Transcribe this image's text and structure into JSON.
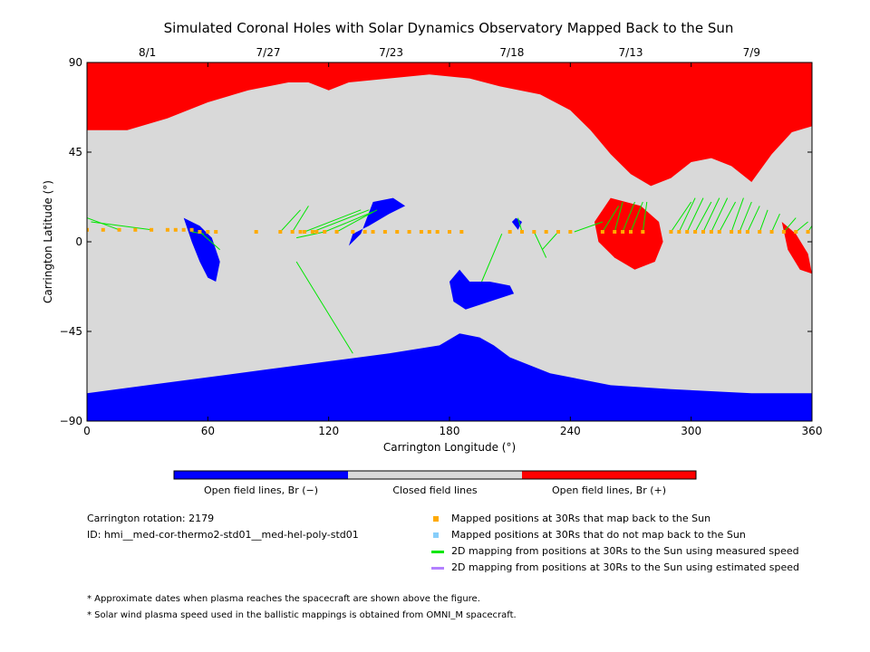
{
  "chart_data": {
    "type": "map",
    "title": "Simulated Coronal Holes with Solar Dynamics Observatory Mapped Back to the Sun",
    "xlabel": "Carrington Longitude (°)",
    "ylabel": "Carrington Latitude (°)",
    "xlim": [
      0,
      360
    ],
    "ylim": [
      -90,
      90
    ],
    "x_ticks": [
      "0",
      "60",
      "120",
      "180",
      "240",
      "300",
      "360"
    ],
    "y_ticks": [
      "90",
      "45",
      "0",
      "−45",
      "−90"
    ],
    "x_tick_values": [
      0,
      60,
      120,
      180,
      240,
      300,
      360
    ],
    "y_tick_values": [
      90,
      45,
      0,
      -45,
      -90
    ],
    "top_dates": [
      {
        "label": "8/1",
        "lon": 30
      },
      {
        "label": "7/27",
        "lon": 90
      },
      {
        "label": "7/23",
        "lon": 151
      },
      {
        "label": "7/18",
        "lon": 211
      },
      {
        "label": "7/13",
        "lon": 270
      },
      {
        "label": "7/9",
        "lon": 330
      }
    ],
    "colors": {
      "open_negative": "#0000ff",
      "closed": "#d9d9d9",
      "open_positive": "#ff0000",
      "mapped": "#ffaa00",
      "not_mapped": "#87cefa",
      "measured_line": "#00e600",
      "estimated_line": "#b380ff"
    },
    "regions": {
      "north_positive_boundary": [
        [
          0,
          56
        ],
        [
          20,
          56
        ],
        [
          40,
          62
        ],
        [
          60,
          70
        ],
        [
          80,
          76
        ],
        [
          100,
          80
        ],
        [
          110,
          80
        ],
        [
          120,
          76
        ],
        [
          130,
          80
        ],
        [
          150,
          82
        ],
        [
          170,
          84
        ],
        [
          190,
          82
        ],
        [
          205,
          78
        ],
        [
          225,
          74
        ],
        [
          240,
          66
        ],
        [
          250,
          56
        ],
        [
          260,
          44
        ],
        [
          270,
          34
        ],
        [
          280,
          28
        ],
        [
          290,
          32
        ],
        [
          300,
          40
        ],
        [
          310,
          42
        ],
        [
          320,
          38
        ],
        [
          330,
          30
        ],
        [
          340,
          44
        ],
        [
          350,
          55
        ],
        [
          360,
          58
        ]
      ],
      "south_negative_boundary": [
        [
          0,
          -76
        ],
        [
          30,
          -72
        ],
        [
          60,
          -68
        ],
        [
          90,
          -64
        ],
        [
          120,
          -60
        ],
        [
          150,
          -56
        ],
        [
          175,
          -52
        ],
        [
          185,
          -46
        ],
        [
          195,
          -48
        ],
        [
          202,
          -52
        ],
        [
          210,
          -58
        ],
        [
          230,
          -66
        ],
        [
          260,
          -72
        ],
        [
          290,
          -74
        ],
        [
          330,
          -76
        ],
        [
          360,
          -76
        ]
      ],
      "positive_patches": [
        [
          [
            260,
            22
          ],
          [
            275,
            18
          ],
          [
            284,
            10
          ],
          [
            286,
            0
          ],
          [
            282,
            -10
          ],
          [
            272,
            -14
          ],
          [
            262,
            -8
          ],
          [
            254,
            0
          ],
          [
            252,
            10
          ]
        ],
        [
          [
            345,
            10
          ],
          [
            352,
            4
          ],
          [
            358,
            -6
          ],
          [
            360,
            -16
          ],
          [
            354,
            -14
          ],
          [
            348,
            -4
          ]
        ]
      ],
      "negative_patches": [
        [
          [
            48,
            12
          ],
          [
            56,
            8
          ],
          [
            62,
            2
          ],
          [
            66,
            -10
          ],
          [
            64,
            -20
          ],
          [
            60,
            -18
          ],
          [
            56,
            -10
          ],
          [
            52,
            0
          ]
        ],
        [
          [
            142,
            20
          ],
          [
            152,
            22
          ],
          [
            158,
            18
          ],
          [
            150,
            14
          ],
          [
            140,
            8
          ],
          [
            132,
            4
          ],
          [
            130,
            -2
          ],
          [
            136,
            4
          ]
        ],
        [
          [
            185,
            -14
          ],
          [
            190,
            -20
          ],
          [
            200,
            -20
          ],
          [
            210,
            -22
          ],
          [
            212,
            -26
          ],
          [
            200,
            -30
          ],
          [
            188,
            -34
          ],
          [
            182,
            -30
          ],
          [
            180,
            -20
          ]
        ],
        [
          [
            213,
            12
          ],
          [
            216,
            10
          ],
          [
            214,
            6
          ],
          [
            211,
            10
          ]
        ]
      ]
    },
    "mapped_positions": [
      [
        0,
        6
      ],
      [
        8,
        6
      ],
      [
        16,
        6
      ],
      [
        24,
        6
      ],
      [
        32,
        6
      ],
      [
        40,
        6
      ],
      [
        44,
        6
      ],
      [
        48,
        6
      ],
      [
        52,
        6
      ],
      [
        56,
        5
      ],
      [
        60,
        5
      ],
      [
        64,
        5
      ],
      [
        84,
        5
      ],
      [
        96,
        5
      ],
      [
        102,
        5
      ],
      [
        106,
        5
      ],
      [
        108,
        5
      ],
      [
        112,
        5
      ],
      [
        114,
        5
      ],
      [
        118,
        5
      ],
      [
        124,
        5
      ],
      [
        132,
        5
      ],
      [
        138,
        5
      ],
      [
        142,
        5
      ],
      [
        148,
        5
      ],
      [
        154,
        5
      ],
      [
        160,
        5
      ],
      [
        166,
        5
      ],
      [
        170,
        5
      ],
      [
        174,
        5
      ],
      [
        180,
        5
      ],
      [
        186,
        5
      ],
      [
        210,
        5
      ],
      [
        216,
        5
      ],
      [
        222,
        5
      ],
      [
        228,
        5
      ],
      [
        234,
        5
      ],
      [
        240,
        5
      ],
      [
        256,
        5
      ],
      [
        262,
        5
      ],
      [
        266,
        5
      ],
      [
        270,
        5
      ],
      [
        276,
        5
      ],
      [
        290,
        5
      ],
      [
        294,
        5
      ],
      [
        298,
        5
      ],
      [
        302,
        5
      ],
      [
        306,
        5
      ],
      [
        310,
        5
      ],
      [
        314,
        5
      ],
      [
        320,
        5
      ],
      [
        324,
        5
      ],
      [
        328,
        5
      ],
      [
        334,
        5
      ],
      [
        340,
        5
      ],
      [
        346,
        5
      ],
      [
        352,
        5
      ],
      [
        358,
        5
      ]
    ],
    "measured_mappings": [
      [
        [
          0,
          6
        ],
        [
          0,
          10
        ]
      ],
      [
        [
          16,
          6
        ],
        [
          0,
          12
        ]
      ],
      [
        [
          32,
          6
        ],
        [
          2,
          10
        ]
      ],
      [
        [
          52,
          5
        ],
        [
          58,
          4
        ]
      ],
      [
        [
          56,
          5
        ],
        [
          66,
          -4
        ]
      ],
      [
        [
          96,
          5
        ],
        [
          106,
          16
        ]
      ],
      [
        [
          102,
          5
        ],
        [
          110,
          18
        ]
      ],
      [
        [
          108,
          5
        ],
        [
          136,
          16
        ]
      ],
      [
        [
          112,
          5
        ],
        [
          140,
          16
        ]
      ],
      [
        [
          118,
          5
        ],
        [
          142,
          15
        ]
      ],
      [
        [
          124,
          5
        ],
        [
          144,
          16
        ]
      ],
      [
        [
          132,
          -56
        ],
        [
          104,
          -10
        ]
      ],
      [
        [
          118,
          5
        ],
        [
          104,
          2
        ]
      ],
      [
        [
          196,
          -20
        ],
        [
          206,
          4
        ]
      ],
      [
        [
          216,
          5
        ],
        [
          214,
          12
        ]
      ],
      [
        [
          222,
          5
        ],
        [
          228,
          -8
        ]
      ],
      [
        [
          234,
          5
        ],
        [
          226,
          -4
        ]
      ],
      [
        [
          242,
          5
        ],
        [
          256,
          10
        ]
      ],
      [
        [
          256,
          5
        ],
        [
          264,
          18
        ]
      ],
      [
        [
          262,
          5
        ],
        [
          266,
          20
        ]
      ],
      [
        [
          266,
          5
        ],
        [
          272,
          20
        ]
      ],
      [
        [
          270,
          5
        ],
        [
          276,
          20
        ]
      ],
      [
        [
          276,
          5
        ],
        [
          278,
          20
        ]
      ],
      [
        [
          290,
          5
        ],
        [
          300,
          20
        ]
      ],
      [
        [
          294,
          5
        ],
        [
          302,
          22
        ]
      ],
      [
        [
          298,
          5
        ],
        [
          306,
          22
        ]
      ],
      [
        [
          302,
          5
        ],
        [
          310,
          20
        ]
      ],
      [
        [
          306,
          5
        ],
        [
          314,
          22
        ]
      ],
      [
        [
          310,
          5
        ],
        [
          318,
          22
        ]
      ],
      [
        [
          314,
          5
        ],
        [
          322,
          20
        ]
      ],
      [
        [
          320,
          5
        ],
        [
          326,
          22
        ]
      ],
      [
        [
          324,
          5
        ],
        [
          330,
          20
        ]
      ],
      [
        [
          328,
          5
        ],
        [
          334,
          18
        ]
      ],
      [
        [
          334,
          5
        ],
        [
          338,
          16
        ]
      ],
      [
        [
          340,
          5
        ],
        [
          344,
          14
        ]
      ],
      [
        [
          346,
          5
        ],
        [
          352,
          12
        ]
      ],
      [
        [
          352,
          5
        ],
        [
          358,
          10
        ]
      ],
      [
        [
          358,
          5
        ],
        [
          360,
          8
        ]
      ]
    ],
    "colorbar": {
      "labels": [
        "Open field lines, Br (−)",
        "Closed field lines",
        "Open field lines, Br (+)"
      ]
    },
    "legend": [
      {
        "label": "Mapped positions at 30Rs that map back to the Sun",
        "marker": "square",
        "color": "#ffaa00"
      },
      {
        "label": "Mapped positions at 30Rs that do not map back to the Sun",
        "marker": "square",
        "color": "#87cefa"
      },
      {
        "label": "2D mapping from positions at 30Rs to the Sun using measured speed",
        "marker": "line",
        "color": "#00e600"
      },
      {
        "label": "2D mapping from positions at 30Rs to the Sun using estimated speed",
        "marker": "line",
        "color": "#b380ff"
      }
    ]
  },
  "info": {
    "rotation": "Carrington rotation: 2179",
    "id": "ID: hmi__med-cor-thermo2-std01__med-hel-poly-std01"
  },
  "notes": [
    "* Approximate dates when plasma reaches the spacecraft are shown above the figure.",
    "* Solar wind plasma speed used in the ballistic mappings is obtained from OMNI_M spacecraft."
  ]
}
